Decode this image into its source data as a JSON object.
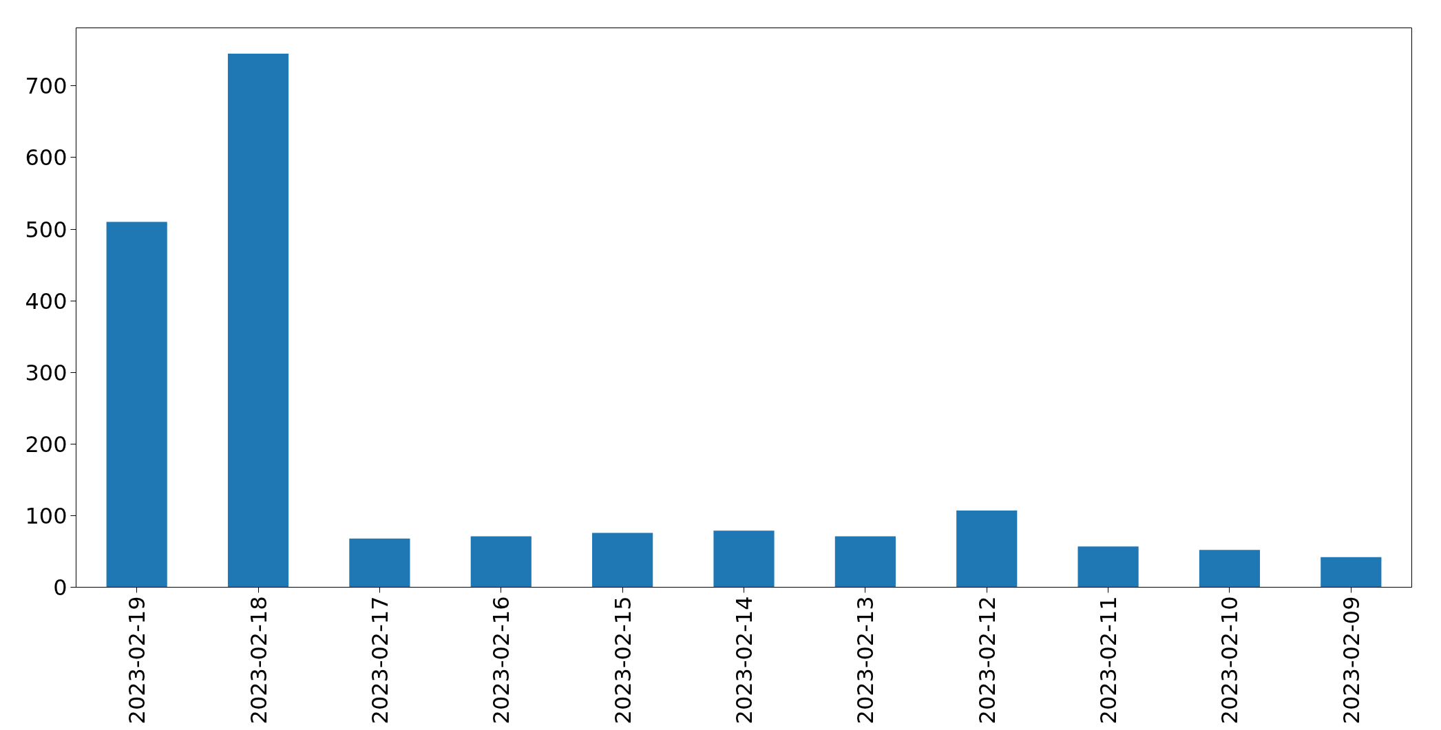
{
  "chart_data": {
    "type": "bar",
    "categories": [
      "2023-02-19",
      "2023-02-18",
      "2023-02-17",
      "2023-02-16",
      "2023-02-15",
      "2023-02-14",
      "2023-02-13",
      "2023-02-12",
      "2023-02-11",
      "2023-02-10",
      "2023-02-09"
    ],
    "values": [
      510,
      745,
      68,
      71,
      76,
      79,
      71,
      107,
      57,
      52,
      42
    ],
    "color": "#1f77b4",
    "ylim": [
      0,
      781
    ],
    "yticks": [
      0,
      100,
      200,
      300,
      400,
      500,
      600,
      700
    ],
    "grid": false
  }
}
